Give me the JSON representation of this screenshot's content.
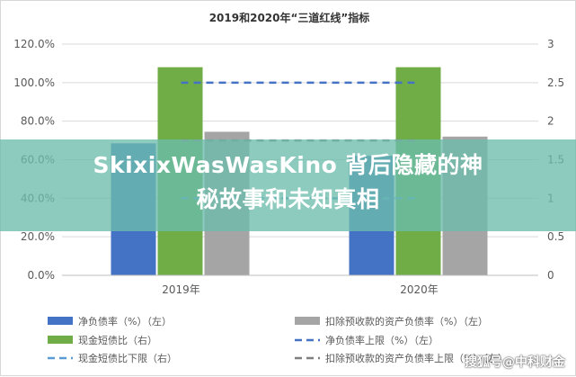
{
  "chart_data": {
    "type": "bar",
    "title": "2019和2020年“三道红线”指标",
    "categories": [
      "2019年",
      "2020年"
    ],
    "y_left": {
      "ticks": [
        "0.0%",
        "20.0%",
        "40.0%",
        "60.0%",
        "80.0%",
        "100.0%",
        "120.0%"
      ],
      "min": 0,
      "max": 120
    },
    "y_right": {
      "ticks": [
        "0",
        "0.5",
        "1",
        "1.5",
        "2",
        "2.5",
        "3"
      ],
      "min": 0,
      "max": 3
    },
    "grid": true,
    "legend_position": "bottom",
    "series": [
      {
        "name": "净负债率（%）（左）",
        "type": "bar",
        "axis": "left",
        "color": "#4472c4",
        "values": [
          68.5,
          62
        ]
      },
      {
        "name": "扣除预收款的资产负债率（%）（左）",
        "type": "bar",
        "axis": "left",
        "color": "#a5a5a5",
        "values": [
          74.5,
          72
        ]
      },
      {
        "name": "现金短债比（右）",
        "type": "bar",
        "axis": "right",
        "color": "#70ad47",
        "values": [
          2.7,
          2.7
        ]
      },
      {
        "name": "净负债率上限（%）（左）",
        "type": "line",
        "axis": "left",
        "color": "#4472c4",
        "dash": true,
        "values": [
          100,
          100
        ]
      },
      {
        "name": "扣除预收款的资产负债率上限（%）（左）",
        "type": "line",
        "axis": "left",
        "color": "#7f7f7f",
        "dash": true,
        "values": [
          70,
          70
        ]
      },
      {
        "name": "现金短债比下限（右）",
        "type": "line",
        "axis": "right",
        "color": "#5b9bd5",
        "dash": true,
        "values": [
          1,
          1
        ]
      }
    ]
  },
  "overlay": {
    "title_line1": "SkixixWasWasKino 背后隐藏的神",
    "title_line2": "秘故事和未知真相"
  },
  "watermark": "搜狐号@中科财金"
}
